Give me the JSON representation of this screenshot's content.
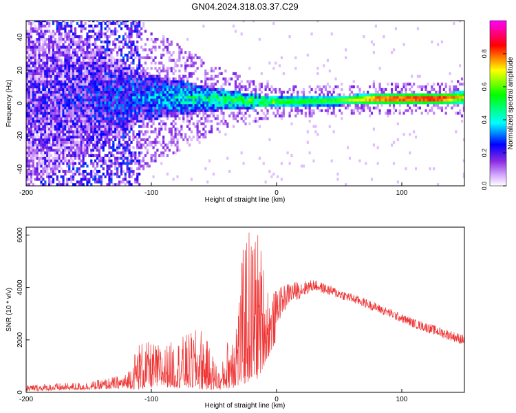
{
  "title": "GN04.2024.318.03.37.C29",
  "chart_data": [
    {
      "type": "heatmap",
      "xlabel": "Height of straight line (km)",
      "ylabel": "Frequency (Hz)",
      "xlim": [
        -200,
        150
      ],
      "ylim": [
        -50,
        50
      ],
      "xticks": [
        -200,
        -100,
        0,
        100
      ],
      "yticks": [
        -40,
        -20,
        0,
        20,
        40
      ],
      "colorbar": {
        "label": "Normalized spectral amplitude",
        "range": [
          0,
          1
        ],
        "ticks": [
          "0.0",
          "0.2",
          "0.4",
          "0.6",
          "0.8"
        ],
        "colors": [
          "#ffffff",
          "#d8b0ff",
          "#8a2be2",
          "#0000ff",
          "#00ffff",
          "#00ff00",
          "#ffff00",
          "#ff0000",
          "#ff00ff"
        ]
      },
      "band_profile": [
        {
          "x": -200,
          "center": 0,
          "halfwidth": 50,
          "level": 0.15
        },
        {
          "x": -150,
          "center": 2,
          "halfwidth": 35,
          "level": 0.2
        },
        {
          "x": -110,
          "center": 3,
          "halfwidth": 15,
          "level": 0.3
        },
        {
          "x": -60,
          "center": 2,
          "halfwidth": 8,
          "level": 0.45
        },
        {
          "x": -30,
          "center": 1,
          "halfwidth": 5,
          "level": 0.55
        },
        {
          "x": 0,
          "center": 0,
          "halfwidth": 3,
          "level": 0.6
        },
        {
          "x": 50,
          "center": 1,
          "halfwidth": 3,
          "level": 0.6
        },
        {
          "x": 80,
          "center": 2,
          "halfwidth": 3,
          "level": 0.9
        },
        {
          "x": 130,
          "center": 2,
          "halfwidth": 3,
          "level": 0.95
        },
        {
          "x": 150,
          "center": 3,
          "halfwidth": 4,
          "level": 0.7
        }
      ]
    },
    {
      "type": "line",
      "xlabel": "Height of straight line (km)",
      "ylabel": "SNR (10 * v/v)",
      "xlim": [
        -200,
        150
      ],
      "ylim": [
        0,
        6300
      ],
      "xticks": [
        -200,
        -100,
        0,
        100
      ],
      "yticks": [
        0,
        2000,
        4000,
        6000
      ],
      "color": "#ee3333",
      "envelope": [
        {
          "x": -200,
          "low": 50,
          "high": 300
        },
        {
          "x": -150,
          "low": 100,
          "high": 400
        },
        {
          "x": -120,
          "low": 150,
          "high": 700
        },
        {
          "x": -110,
          "low": 100,
          "high": 2000
        },
        {
          "x": -90,
          "low": 200,
          "high": 1800
        },
        {
          "x": -60,
          "low": 100,
          "high": 2500
        },
        {
          "x": -45,
          "low": 100,
          "high": 800
        },
        {
          "x": -30,
          "low": 200,
          "high": 4000
        },
        {
          "x": -25,
          "low": 300,
          "high": 6300
        },
        {
          "x": -15,
          "low": 500,
          "high": 6300
        },
        {
          "x": -5,
          "low": 1500,
          "high": 3800
        },
        {
          "x": 10,
          "low": 3000,
          "high": 4200
        },
        {
          "x": 30,
          "low": 3700,
          "high": 4300
        },
        {
          "x": 70,
          "low": 3100,
          "high": 3600
        },
        {
          "x": 110,
          "low": 2300,
          "high": 2800
        },
        {
          "x": 150,
          "low": 1600,
          "high": 2200
        }
      ]
    }
  ]
}
